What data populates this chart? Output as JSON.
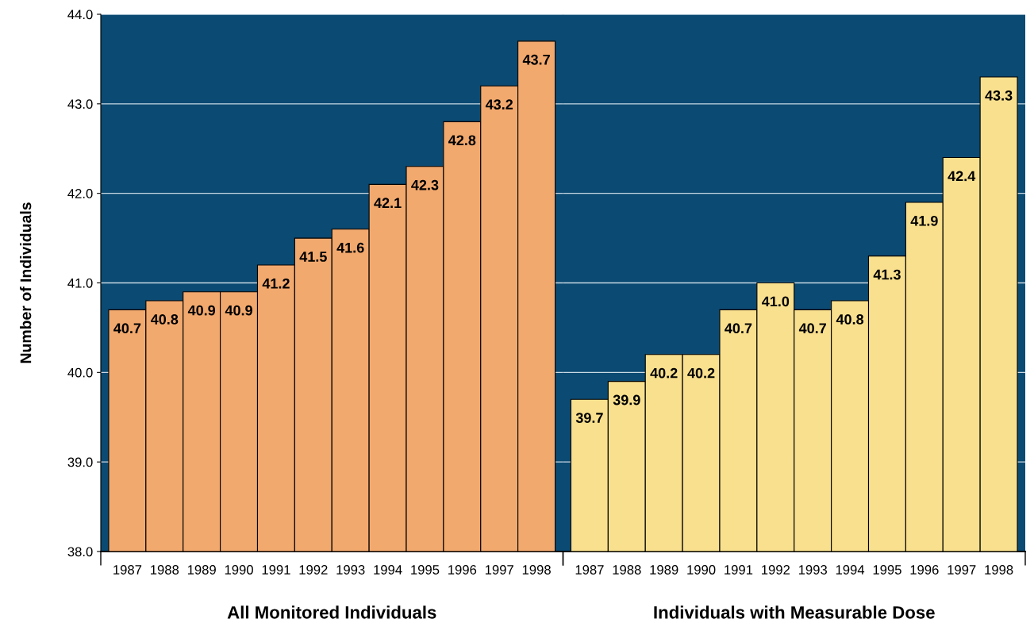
{
  "chart_data": [
    {
      "type": "bar",
      "xlabel": "All Monitored Individuals",
      "ylabel": "Number of Individuals",
      "categories": [
        "1987",
        "1988",
        "1989",
        "1990",
        "1991",
        "1992",
        "1993",
        "1994",
        "1995",
        "1996",
        "1997",
        "1998"
      ],
      "values": [
        40.7,
        40.8,
        40.9,
        40.9,
        41.2,
        41.5,
        41.6,
        42.1,
        42.3,
        42.8,
        43.2,
        43.7
      ],
      "color": "#f2a96e",
      "ylim": [
        38,
        44
      ],
      "yticks": [
        {
          "value": 38,
          "label": "38.0"
        },
        {
          "value": 39,
          "label": "39.0"
        },
        {
          "value": 40,
          "label": "40.0"
        },
        {
          "value": 41,
          "label": "41.0"
        },
        {
          "value": 42,
          "label": "42.0"
        },
        {
          "value": 43,
          "label": "43.0"
        },
        {
          "value": 44,
          "label": "44.0"
        }
      ],
      "grid": "y",
      "value_labels": [
        "40.7",
        "40.8",
        "40.9",
        "40.9",
        "41.2",
        "41.5",
        "41.6",
        "42.1",
        "42.3",
        "42.8",
        "43.2",
        "43.7"
      ]
    },
    {
      "type": "bar",
      "xlabel": "Individuals with Measurable Dose",
      "categories": [
        "1987",
        "1988",
        "1989",
        "1990",
        "1991",
        "1992",
        "1993",
        "1994",
        "1995",
        "1996",
        "1997",
        "1998"
      ],
      "values": [
        39.7,
        39.9,
        40.2,
        40.2,
        40.7,
        41.0,
        40.7,
        40.8,
        41.3,
        41.9,
        42.4,
        43.3
      ],
      "color": "#f9e08e",
      "ylim": [
        38,
        44
      ],
      "yticks": [
        {
          "value": 38,
          "label": null
        },
        {
          "value": 39,
          "label": null
        },
        {
          "value": 40,
          "label": null
        },
        {
          "value": 41,
          "label": null
        },
        {
          "value": 42,
          "label": null
        },
        {
          "value": 43,
          "label": null
        },
        {
          "value": 44,
          "label": null
        }
      ],
      "grid": "y",
      "value_labels": [
        "39.7",
        "39.9",
        "40.2",
        "40.2",
        "40.7",
        "41.0",
        "40.7",
        "40.8",
        "41.3",
        "41.9",
        "42.4",
        "43.3"
      ],
      "tick_labels": "x"
    }
  ]
}
